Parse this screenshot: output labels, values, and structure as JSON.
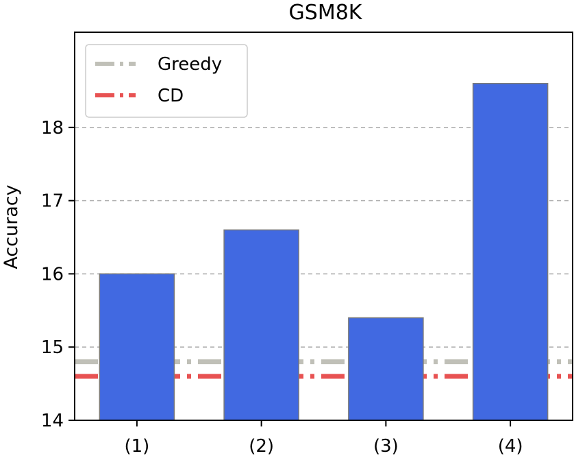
{
  "chart_data": {
    "type": "bar",
    "title": "GSM8K",
    "xlabel": "",
    "ylabel": "Accuracy",
    "categories": [
      "(1)",
      "(2)",
      "(3)",
      "(4)"
    ],
    "values": [
      16.0,
      16.6,
      15.4,
      18.6
    ],
    "ylim": [
      14,
      19.3
    ],
    "yticks": [
      14,
      15,
      16,
      17,
      18
    ],
    "grid": "y-dashed",
    "baselines": [
      {
        "name": "Greedy",
        "value": 14.8,
        "color": "#c0c0b8",
        "style": "dashdot"
      },
      {
        "name": "CD",
        "value": 14.6,
        "color": "#e85252",
        "style": "dashdot"
      }
    ],
    "legend": {
      "position": "top-left",
      "entries": [
        "Greedy",
        "CD"
      ]
    },
    "colors": {
      "bar": "#4169e1",
      "bar_edge": "#7a7a7a",
      "grid": "#b0b0b0"
    }
  }
}
